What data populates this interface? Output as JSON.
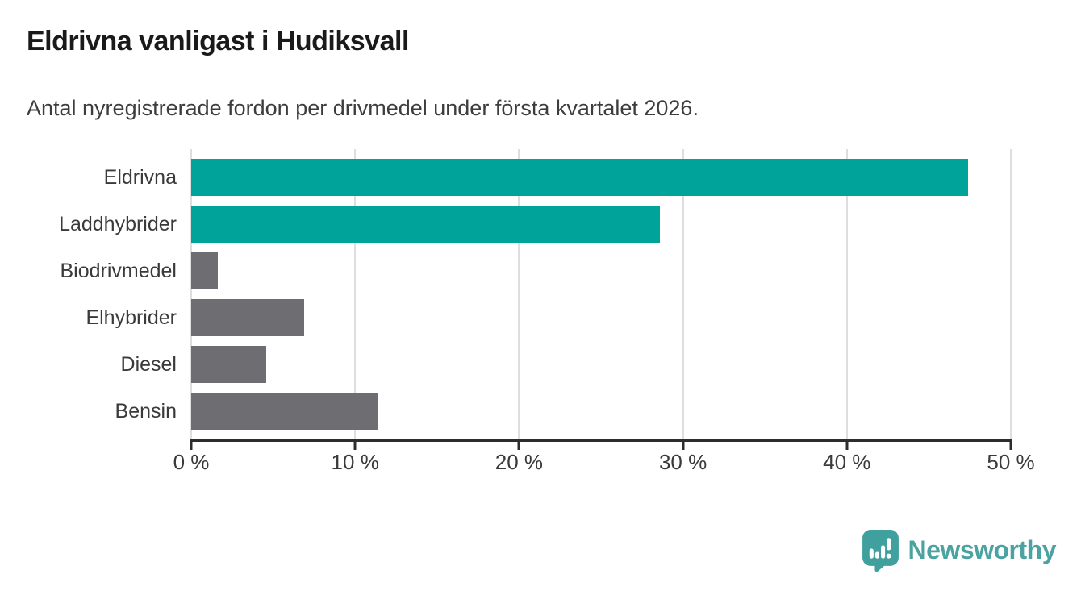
{
  "chart_data": {
    "type": "bar",
    "orientation": "horizontal",
    "title": "Eldrivna vanligast i Hudiksvall",
    "subtitle": "Antal nyregistrerade fordon per drivmedel under första kvartalet 2026.",
    "categories": [
      "Eldrivna",
      "Laddhybrider",
      "Biodrivmedel",
      "Elhybrider",
      "Diesel",
      "Bensin"
    ],
    "values": [
      47.4,
      28.6,
      1.6,
      6.9,
      4.6,
      11.4
    ],
    "unit": "%",
    "bar_colors": [
      "#00a399",
      "#00a399",
      "#6d6d72",
      "#6d6d72",
      "#6d6d72",
      "#6d6d72"
    ],
    "xlim": [
      0,
      50
    ],
    "xticks": [
      0,
      10,
      20,
      30,
      40,
      50
    ],
    "xtick_labels": [
      "0 %",
      "10 %",
      "20 %",
      "30 %",
      "40 %",
      "50 %"
    ],
    "grid": "vertical",
    "legend": "none",
    "style_colors": {
      "highlight": "#00a399",
      "default_bar": "#6d6d72",
      "gridline": "#dedede",
      "axis": "#2d2d2d",
      "text": "#3a3a3a"
    }
  },
  "footer": {
    "brand": "Newsworthy",
    "brand_color": "#4ba3a1",
    "logo_icon": "newsworthy-speech-bubble-chart-icon"
  }
}
